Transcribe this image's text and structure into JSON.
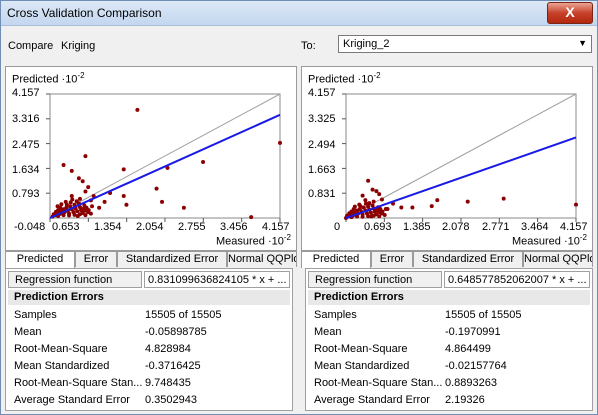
{
  "window": {
    "title": "Cross Validation Comparison",
    "close_glyph": "X"
  },
  "compare": {
    "label": "Compare",
    "value": "Kriging"
  },
  "to": {
    "label": "To:",
    "value": "Kriging_2"
  },
  "left": {
    "y_title": "Predicted ·10",
    "y_exp": "-2",
    "x_title": "Measured ·10",
    "x_exp": "-2",
    "y_ticks": [
      "4.157",
      "3.316",
      "2.475",
      "1.634",
      "0.793"
    ],
    "x_ticks": [
      "-0.048",
      "0.653",
      "1.354",
      "2.054",
      "2.755",
      "3.456",
      "4.157"
    ]
  },
  "right": {
    "y_title": "Predicted ·10",
    "y_exp": "-2",
    "x_title": "Measured ·10",
    "x_exp": "-2",
    "y_ticks": [
      "4.157",
      "3.325",
      "2.494",
      "1.663",
      "0.831"
    ],
    "x_ticks": [
      "0",
      "0.693",
      "1.385",
      "2.078",
      "2.771",
      "3.464",
      "4.157"
    ]
  },
  "tabs": [
    "Predicted",
    "Error",
    "Standardized Error",
    "Normal QQPlo"
  ],
  "stats_left": {
    "reg_label": "Regression function",
    "reg_value": "0.831099636824105 * x + ...",
    "header": "Prediction Errors",
    "rows": [
      {
        "k": "Samples",
        "v": "15505 of 15505"
      },
      {
        "k": "Mean",
        "v": "-0.05898785"
      },
      {
        "k": "Root-Mean-Square",
        "v": "4.828984"
      },
      {
        "k": "Mean Standardized",
        "v": "-0.3716425"
      },
      {
        "k": "Root-Mean-Square Stan...",
        "v": "9.748435"
      },
      {
        "k": "Average Standard Error",
        "v": "0.3502943"
      }
    ]
  },
  "stats_right": {
    "reg_label": "Regression function",
    "reg_value": "0.648577852062007 * x + ...",
    "header": "Prediction Errors",
    "rows": [
      {
        "k": "Samples",
        "v": "15505 of 15505"
      },
      {
        "k": "Mean",
        "v": "-0.1970991"
      },
      {
        "k": "Root-Mean-Square",
        "v": "4.864499"
      },
      {
        "k": "Mean Standardized",
        "v": "-0.02157764"
      },
      {
        "k": "Root-Mean-Square Stan...",
        "v": "0.8893263"
      },
      {
        "k": "Average Standard Error",
        "v": "2.19326"
      }
    ]
  },
  "chart_data": [
    {
      "type": "scatter",
      "title": "",
      "xlabel": "Measured ·10-2",
      "ylabel": "Predicted ·10-2",
      "xlim": [
        -0.048,
        4.157
      ],
      "ylim": [
        -0.048,
        4.157
      ],
      "x_ticks": [
        -0.048,
        0.653,
        1.354,
        2.054,
        2.755,
        3.456,
        4.157
      ],
      "y_ticks": [
        0.793,
        1.634,
        2.475,
        3.316,
        4.157
      ],
      "reference_line": {
        "from": [
          -0.048,
          -0.048
        ],
        "to": [
          4.157,
          4.157
        ],
        "color": "#a0a0a0"
      },
      "regression_line": {
        "from": [
          -0.048,
          -0.048
        ],
        "to": [
          4.157,
          3.45
        ],
        "color": "#1a1ae6"
      },
      "point_color": "#8b0000",
      "points": [
        [
          3.63,
          -0.02
        ],
        [
          4.157,
          2.5
        ],
        [
          1.55,
          3.62
        ],
        [
          2.1,
          1.65
        ],
        [
          2.75,
          1.85
        ],
        [
          1.3,
          1.6
        ],
        [
          1.9,
          0.95
        ],
        [
          2.0,
          0.5
        ],
        [
          2.4,
          0.3
        ],
        [
          0.2,
          1.75
        ],
        [
          0.35,
          1.55
        ],
        [
          0.6,
          2.05
        ],
        [
          0.48,
          1.3
        ],
        [
          0.55,
          1.2
        ],
        [
          0.6,
          0.85
        ],
        [
          0.65,
          1.0
        ],
        [
          0.75,
          0.7
        ],
        [
          1.05,
          0.8
        ],
        [
          1.3,
          0.7
        ],
        [
          1.35,
          0.4
        ],
        [
          0.7,
          0.55
        ],
        [
          0.5,
          0.6
        ],
        [
          0.35,
          0.7
        ],
        [
          0.85,
          0.3
        ],
        [
          0.95,
          0.5
        ],
        [
          0.0,
          0.0
        ],
        [
          0.05,
          0.05
        ],
        [
          0.08,
          0.12
        ],
        [
          0.12,
          0.08
        ],
        [
          0.15,
          0.18
        ],
        [
          0.18,
          0.1
        ],
        [
          0.2,
          0.25
        ],
        [
          0.22,
          0.15
        ],
        [
          0.25,
          0.3
        ],
        [
          0.28,
          0.2
        ],
        [
          0.3,
          0.1
        ],
        [
          0.32,
          0.35
        ],
        [
          0.35,
          0.25
        ],
        [
          0.38,
          0.15
        ],
        [
          0.4,
          0.4
        ],
        [
          0.42,
          0.28
        ],
        [
          0.45,
          0.18
        ],
        [
          0.48,
          0.45
        ],
        [
          0.5,
          0.32
        ],
        [
          0.52,
          0.22
        ],
        [
          0.55,
          0.12
        ],
        [
          0.58,
          0.38
        ],
        [
          0.6,
          0.2
        ],
        [
          0.62,
          0.3
        ],
        [
          0.65,
          0.15
        ],
        [
          0.1,
          0.22
        ],
        [
          0.14,
          0.3
        ],
        [
          0.06,
          0.16
        ],
        [
          0.26,
          0.4
        ],
        [
          0.33,
          0.48
        ],
        [
          0.44,
          0.52
        ],
        [
          0.02,
          0.08
        ],
        [
          0.1,
          0.02
        ],
        [
          0.2,
          0.05
        ],
        [
          0.3,
          0.04
        ],
        [
          0.4,
          0.06
        ],
        [
          0.5,
          0.08
        ],
        [
          0.6,
          0.05
        ],
        [
          0.7,
          0.1
        ],
        [
          0.16,
          0.42
        ],
        [
          0.24,
          0.5
        ],
        [
          0.36,
          0.58
        ],
        [
          0.09,
          0.35
        ],
        [
          0.46,
          0.02
        ],
        [
          0.56,
          0.26
        ],
        [
          0.66,
          0.22
        ],
        [
          0.72,
          0.35
        ]
      ]
    },
    {
      "type": "scatter",
      "title": "",
      "xlabel": "Measured ·10-2",
      "ylabel": "Predicted ·10-2",
      "xlim": [
        0,
        4.157
      ],
      "ylim": [
        0,
        4.157
      ],
      "x_ticks": [
        0,
        0.693,
        1.385,
        2.078,
        2.771,
        3.464,
        4.157
      ],
      "y_ticks": [
        0.831,
        1.663,
        2.494,
        3.325,
        4.157
      ],
      "reference_line": {
        "from": [
          0,
          0
        ],
        "to": [
          4.157,
          4.157
        ],
        "color": "#a0a0a0"
      },
      "regression_line": {
        "from": [
          0,
          0
        ],
        "to": [
          4.157,
          2.7
        ],
        "color": "#1a1ae6"
      },
      "point_color": "#8b0000",
      "points": [
        [
          4.157,
          0.45
        ],
        [
          2.85,
          0.65
        ],
        [
          2.2,
          0.55
        ],
        [
          1.65,
          0.6
        ],
        [
          1.55,
          0.4
        ],
        [
          1.2,
          0.35
        ],
        [
          1.0,
          0.35
        ],
        [
          0.85,
          0.48
        ],
        [
          0.75,
          0.3
        ],
        [
          0.6,
          0.8
        ],
        [
          0.5,
          0.55
        ],
        [
          0.4,
          1.25
        ],
        [
          0.48,
          0.95
        ],
        [
          0.55,
          0.9
        ],
        [
          0.65,
          0.62
        ],
        [
          0.3,
          0.75
        ],
        [
          0.35,
          0.6
        ],
        [
          0.42,
          0.5
        ],
        [
          0.0,
          0.0
        ],
        [
          0.05,
          0.05
        ],
        [
          0.08,
          0.12
        ],
        [
          0.12,
          0.08
        ],
        [
          0.15,
          0.18
        ],
        [
          0.18,
          0.1
        ],
        [
          0.2,
          0.25
        ],
        [
          0.22,
          0.15
        ],
        [
          0.25,
          0.3
        ],
        [
          0.28,
          0.2
        ],
        [
          0.3,
          0.12
        ],
        [
          0.32,
          0.35
        ],
        [
          0.35,
          0.25
        ],
        [
          0.38,
          0.15
        ],
        [
          0.4,
          0.38
        ],
        [
          0.42,
          0.28
        ],
        [
          0.45,
          0.18
        ],
        [
          0.48,
          0.42
        ],
        [
          0.5,
          0.32
        ],
        [
          0.52,
          0.22
        ],
        [
          0.55,
          0.12
        ],
        [
          0.58,
          0.36
        ],
        [
          0.6,
          0.2
        ],
        [
          0.62,
          0.3
        ],
        [
          0.65,
          0.15
        ],
        [
          0.1,
          0.22
        ],
        [
          0.14,
          0.3
        ],
        [
          0.06,
          0.16
        ],
        [
          0.26,
          0.4
        ],
        [
          0.02,
          0.08
        ],
        [
          0.1,
          0.03
        ],
        [
          0.2,
          0.05
        ],
        [
          0.3,
          0.04
        ],
        [
          0.4,
          0.06
        ],
        [
          0.5,
          0.08
        ],
        [
          0.6,
          0.06
        ],
        [
          0.7,
          0.1
        ],
        [
          0.16,
          0.38
        ],
        [
          0.24,
          0.45
        ],
        [
          0.36,
          0.48
        ],
        [
          0.46,
          0.05
        ],
        [
          0.56,
          0.26
        ],
        [
          0.66,
          0.22
        ],
        [
          0.72,
          0.3
        ]
      ]
    }
  ]
}
